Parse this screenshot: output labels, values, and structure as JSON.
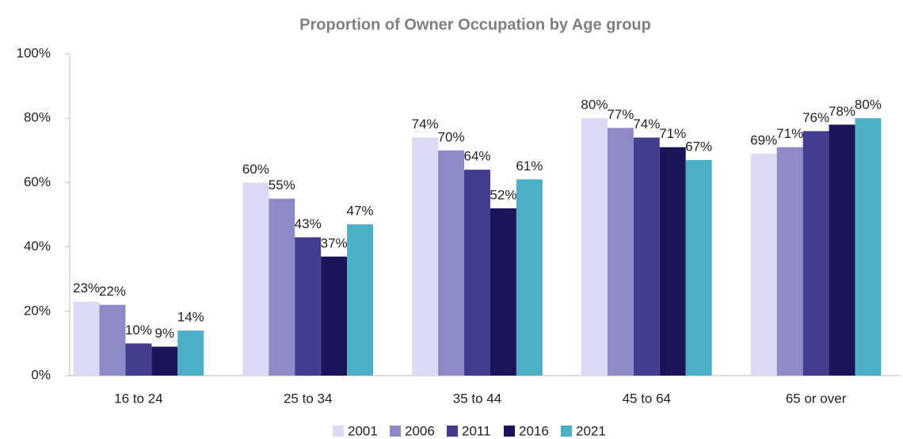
{
  "chart_data": {
    "type": "bar",
    "title": "Proportion of Owner Occupation by Age group",
    "categories": [
      "16 to 24",
      "25 to 34",
      "35 to 44",
      "45 to 64",
      "65 or over"
    ],
    "series": [
      {
        "name": "2001",
        "color": "#dcdaf5",
        "values": [
          23,
          60,
          74,
          80,
          69
        ],
        "value_labels": [
          "23%",
          "60%",
          "74%",
          "80%",
          "69%"
        ]
      },
      {
        "name": "2006",
        "color": "#8e8ac8",
        "values": [
          22,
          55,
          70,
          77,
          71
        ],
        "value_labels": [
          "22%",
          "55%",
          "70%",
          "77%",
          "71%"
        ]
      },
      {
        "name": "2011",
        "color": "#433d8f",
        "values": [
          10,
          43,
          64,
          74,
          76
        ],
        "value_labels": [
          "10%",
          "43%",
          "64%",
          "74%",
          "76%"
        ]
      },
      {
        "name": "2016",
        "color": "#1b1459",
        "values": [
          9,
          37,
          52,
          71,
          78
        ],
        "value_labels": [
          "9%",
          "37%",
          "52%",
          "71%",
          "78%"
        ]
      },
      {
        "name": "2021",
        "color": "#4bafc6",
        "values": [
          14,
          47,
          61,
          67,
          80
        ],
        "value_labels": [
          "14%",
          "47%",
          "61%",
          "67%",
          "80%"
        ]
      }
    ],
    "ylim": [
      0,
      100
    ],
    "yticks": [
      {
        "value": 0,
        "label": "0%"
      },
      {
        "value": 20,
        "label": "20%"
      },
      {
        "value": 40,
        "label": "40%"
      },
      {
        "value": 60,
        "label": "60%"
      },
      {
        "value": 80,
        "label": "80%"
      },
      {
        "value": 100,
        "label": "100%"
      }
    ],
    "grid": false,
    "legend": "bottom"
  }
}
